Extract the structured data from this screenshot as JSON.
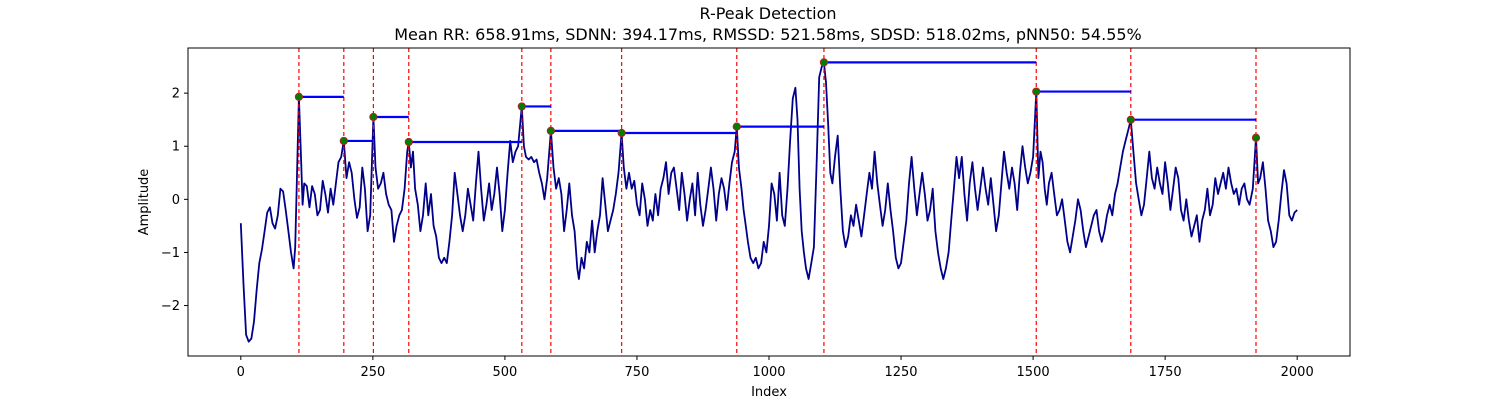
{
  "chart_data": {
    "type": "line",
    "title": "R-Peak Detection",
    "subtitle": "Mean RR: 658.91ms, SDNN: 394.17ms, RMSSD: 521.58ms, SDSD: 518.02ms, pNN50: 54.55%",
    "xlabel": "Index",
    "ylabel": "Amplitude",
    "xlim": [
      -100,
      2100
    ],
    "ylim": [
      -2.95,
      2.85
    ],
    "xticks": [
      0,
      250,
      500,
      750,
      1000,
      1250,
      1500,
      1750,
      2000
    ],
    "yticks": [
      -2,
      -1,
      0,
      1,
      2
    ],
    "grid": false,
    "legend": "none",
    "colors": {
      "signal": "#00008b",
      "peak_line": "#ff0000",
      "rr_segment": "#0000ff",
      "peak_marker_fill": "#008000",
      "peak_marker_edge": "#b22222"
    },
    "peaks": [
      {
        "x": 110,
        "y": 1.93
      },
      {
        "x": 195,
        "y": 1.1
      },
      {
        "x": 251,
        "y": 1.55
      },
      {
        "x": 318,
        "y": 1.08
      },
      {
        "x": 532,
        "y": 1.75
      },
      {
        "x": 587,
        "y": 1.29
      },
      {
        "x": 721,
        "y": 1.25
      },
      {
        "x": 939,
        "y": 1.37
      },
      {
        "x": 1104,
        "y": 2.58
      },
      {
        "x": 1506,
        "y": 2.03
      },
      {
        "x": 1685,
        "y": 1.5
      },
      {
        "x": 1922,
        "y": 1.16
      }
    ],
    "signal_points": [
      [
        0,
        -0.45
      ],
      [
        5,
        -1.6
      ],
      [
        10,
        -2.55
      ],
      [
        15,
        -2.68
      ],
      [
        20,
        -2.62
      ],
      [
        25,
        -2.3
      ],
      [
        30,
        -1.7
      ],
      [
        35,
        -1.2
      ],
      [
        40,
        -0.95
      ],
      [
        45,
        -0.6
      ],
      [
        50,
        -0.25
      ],
      [
        55,
        -0.15
      ],
      [
        60,
        -0.45
      ],
      [
        65,
        -0.55
      ],
      [
        70,
        -0.3
      ],
      [
        75,
        0.2
      ],
      [
        80,
        0.15
      ],
      [
        85,
        -0.2
      ],
      [
        90,
        -0.6
      ],
      [
        95,
        -1.0
      ],
      [
        100,
        -1.3
      ],
      [
        103,
        -0.9
      ],
      [
        106,
        0.3
      ],
      [
        110,
        1.93
      ],
      [
        114,
        0.8
      ],
      [
        117,
        -0.1
      ],
      [
        120,
        0.3
      ],
      [
        125,
        0.25
      ],
      [
        130,
        -0.15
      ],
      [
        135,
        0.25
      ],
      [
        140,
        0.1
      ],
      [
        145,
        -0.3
      ],
      [
        150,
        -0.2
      ],
      [
        155,
        0.35
      ],
      [
        160,
        0.1
      ],
      [
        165,
        -0.25
      ],
      [
        170,
        0.2
      ],
      [
        175,
        -0.1
      ],
      [
        180,
        0.3
      ],
      [
        185,
        0.7
      ],
      [
        190,
        0.8
      ],
      [
        195,
        1.1
      ],
      [
        200,
        0.4
      ],
      [
        205,
        0.7
      ],
      [
        210,
        0.5
      ],
      [
        215,
        0.0
      ],
      [
        220,
        -0.35
      ],
      [
        225,
        -0.15
      ],
      [
        230,
        0.6
      ],
      [
        235,
        0.2
      ],
      [
        240,
        -0.6
      ],
      [
        245,
        -0.3
      ],
      [
        251,
        1.55
      ],
      [
        255,
        0.6
      ],
      [
        260,
        0.2
      ],
      [
        265,
        0.3
      ],
      [
        270,
        0.5
      ],
      [
        275,
        0.1
      ],
      [
        280,
        -0.1
      ],
      [
        285,
        -0.2
      ],
      [
        290,
        -0.8
      ],
      [
        295,
        -0.5
      ],
      [
        300,
        -0.3
      ],
      [
        305,
        -0.2
      ],
      [
        310,
        0.2
      ],
      [
        315,
        0.9
      ],
      [
        318,
        1.08
      ],
      [
        322,
        0.6
      ],
      [
        326,
        0.9
      ],
      [
        330,
        0.2
      ],
      [
        335,
        -0.1
      ],
      [
        340,
        -0.6
      ],
      [
        345,
        -0.3
      ],
      [
        350,
        0.3
      ],
      [
        355,
        -0.3
      ],
      [
        360,
        0.1
      ],
      [
        365,
        -0.5
      ],
      [
        370,
        -0.7
      ],
      [
        375,
        -1.1
      ],
      [
        380,
        -1.2
      ],
      [
        385,
        -1.1
      ],
      [
        390,
        -1.2
      ],
      [
        395,
        -0.8
      ],
      [
        400,
        -0.3
      ],
      [
        405,
        0.5
      ],
      [
        410,
        0.1
      ],
      [
        415,
        -0.3
      ],
      [
        420,
        -0.6
      ],
      [
        425,
        -0.3
      ],
      [
        430,
        0.2
      ],
      [
        435,
        -0.1
      ],
      [
        440,
        -0.4
      ],
      [
        445,
        0.3
      ],
      [
        450,
        0.9
      ],
      [
        455,
        0.2
      ],
      [
        460,
        -0.4
      ],
      [
        465,
        -0.1
      ],
      [
        470,
        0.3
      ],
      [
        475,
        -0.2
      ],
      [
        480,
        0.1
      ],
      [
        485,
        0.6
      ],
      [
        490,
        0.1
      ],
      [
        495,
        -0.6
      ],
      [
        500,
        -0.2
      ],
      [
        505,
        0.5
      ],
      [
        510,
        1.1
      ],
      [
        515,
        0.7
      ],
      [
        520,
        0.9
      ],
      [
        525,
        1.0
      ],
      [
        532,
        1.75
      ],
      [
        536,
        1.0
      ],
      [
        540,
        0.8
      ],
      [
        545,
        0.75
      ],
      [
        550,
        0.8
      ],
      [
        555,
        0.7
      ],
      [
        560,
        0.75
      ],
      [
        565,
        0.5
      ],
      [
        570,
        0.3
      ],
      [
        575,
        0.0
      ],
      [
        580,
        0.4
      ],
      [
        587,
        1.29
      ],
      [
        592,
        0.6
      ],
      [
        597,
        0.2
      ],
      [
        602,
        0.4
      ],
      [
        607,
        0.1
      ],
      [
        612,
        -0.6
      ],
      [
        617,
        -0.2
      ],
      [
        622,
        0.3
      ],
      [
        627,
        -0.3
      ],
      [
        632,
        -0.6
      ],
      [
        637,
        -1.3
      ],
      [
        640,
        -1.5
      ],
      [
        645,
        -1.1
      ],
      [
        650,
        -1.3
      ],
      [
        655,
        -0.8
      ],
      [
        660,
        -1.0
      ],
      [
        665,
        -0.4
      ],
      [
        670,
        -1.0
      ],
      [
        675,
        -0.6
      ],
      [
        680,
        -0.3
      ],
      [
        685,
        0.4
      ],
      [
        690,
        -0.1
      ],
      [
        695,
        -0.6
      ],
      [
        700,
        -0.4
      ],
      [
        705,
        -0.2
      ],
      [
        710,
        0.1
      ],
      [
        715,
        0.5
      ],
      [
        721,
        1.25
      ],
      [
        725,
        0.6
      ],
      [
        730,
        0.2
      ],
      [
        735,
        0.5
      ],
      [
        740,
        0.2
      ],
      [
        745,
        0.35
      ],
      [
        750,
        -0.1
      ],
      [
        755,
        -0.3
      ],
      [
        760,
        0.3
      ],
      [
        765,
        0.0
      ],
      [
        770,
        -0.5
      ],
      [
        775,
        -0.2
      ],
      [
        780,
        -0.4
      ],
      [
        785,
        0.1
      ],
      [
        790,
        -0.3
      ],
      [
        795,
        0.2
      ],
      [
        800,
        0.4
      ],
      [
        805,
        0.7
      ],
      [
        810,
        0.1
      ],
      [
        815,
        0.5
      ],
      [
        820,
        0.6
      ],
      [
        825,
        0.2
      ],
      [
        830,
        -0.2
      ],
      [
        835,
        0.5
      ],
      [
        840,
        0.1
      ],
      [
        845,
        -0.4
      ],
      [
        850,
        0.0
      ],
      [
        855,
        0.3
      ],
      [
        860,
        -0.3
      ],
      [
        865,
        0.5
      ],
      [
        870,
        -0.1
      ],
      [
        875,
        -0.5
      ],
      [
        880,
        -0.2
      ],
      [
        885,
        0.2
      ],
      [
        890,
        0.6
      ],
      [
        895,
        0.2
      ],
      [
        900,
        -0.4
      ],
      [
        905,
        0.1
      ],
      [
        910,
        0.4
      ],
      [
        915,
        0.2
      ],
      [
        920,
        -0.2
      ],
      [
        925,
        0.3
      ],
      [
        930,
        0.7
      ],
      [
        935,
        0.9
      ],
      [
        939,
        1.37
      ],
      [
        943,
        0.6
      ],
      [
        948,
        0.2
      ],
      [
        952,
        -0.2
      ],
      [
        956,
        -0.5
      ],
      [
        960,
        -0.8
      ],
      [
        965,
        -1.1
      ],
      [
        970,
        -1.2
      ],
      [
        975,
        -1.1
      ],
      [
        980,
        -1.3
      ],
      [
        985,
        -1.2
      ],
      [
        990,
        -0.8
      ],
      [
        995,
        -1.0
      ],
      [
        1000,
        -0.5
      ],
      [
        1005,
        0.3
      ],
      [
        1010,
        0.1
      ],
      [
        1015,
        -0.4
      ],
      [
        1020,
        0.5
      ],
      [
        1025,
        -0.3
      ],
      [
        1030,
        -0.5
      ],
      [
        1035,
        0.2
      ],
      [
        1040,
        1.1
      ],
      [
        1045,
        1.9
      ],
      [
        1050,
        2.1
      ],
      [
        1054,
        1.5
      ],
      [
        1058,
        0.2
      ],
      [
        1062,
        -0.6
      ],
      [
        1066,
        -1.0
      ],
      [
        1070,
        -1.3
      ],
      [
        1075,
        -1.5
      ],
      [
        1080,
        -1.2
      ],
      [
        1085,
        -0.9
      ],
      [
        1090,
        0.6
      ],
      [
        1095,
        2.3
      ],
      [
        1100,
        2.5
      ],
      [
        1104,
        2.58
      ],
      [
        1108,
        2.2
      ],
      [
        1112,
        1.4
      ],
      [
        1116,
        0.5
      ],
      [
        1120,
        0.3
      ],
      [
        1125,
        0.8
      ],
      [
        1130,
        1.2
      ],
      [
        1135,
        0.2
      ],
      [
        1140,
        -0.6
      ],
      [
        1145,
        -0.9
      ],
      [
        1150,
        -0.7
      ],
      [
        1155,
        -0.3
      ],
      [
        1160,
        -0.5
      ],
      [
        1165,
        -0.1
      ],
      [
        1170,
        -0.4
      ],
      [
        1175,
        -0.7
      ],
      [
        1180,
        -0.3
      ],
      [
        1185,
        0.1
      ],
      [
        1190,
        0.5
      ],
      [
        1195,
        0.2
      ],
      [
        1200,
        0.9
      ],
      [
        1205,
        0.3
      ],
      [
        1210,
        -0.1
      ],
      [
        1215,
        -0.5
      ],
      [
        1220,
        -0.2
      ],
      [
        1225,
        0.3
      ],
      [
        1230,
        -0.2
      ],
      [
        1235,
        -0.6
      ],
      [
        1240,
        -1.1
      ],
      [
        1245,
        -1.3
      ],
      [
        1250,
        -1.2
      ],
      [
        1255,
        -0.8
      ],
      [
        1260,
        -0.4
      ],
      [
        1265,
        0.3
      ],
      [
        1270,
        0.8
      ],
      [
        1275,
        0.2
      ],
      [
        1280,
        -0.3
      ],
      [
        1285,
        0.1
      ],
      [
        1290,
        0.5
      ],
      [
        1295,
        0.1
      ],
      [
        1300,
        -0.4
      ],
      [
        1305,
        -0.2
      ],
      [
        1310,
        0.2
      ],
      [
        1315,
        -0.6
      ],
      [
        1320,
        -1.0
      ],
      [
        1325,
        -1.3
      ],
      [
        1330,
        -1.5
      ],
      [
        1335,
        -1.3
      ],
      [
        1340,
        -1.0
      ],
      [
        1345,
        -0.4
      ],
      [
        1350,
        0.2
      ],
      [
        1355,
        0.8
      ],
      [
        1360,
        0.4
      ],
      [
        1365,
        0.8
      ],
      [
        1370,
        0.1
      ],
      [
        1375,
        -0.4
      ],
      [
        1380,
        0.3
      ],
      [
        1385,
        0.7
      ],
      [
        1390,
        0.2
      ],
      [
        1395,
        -0.2
      ],
      [
        1400,
        0.2
      ],
      [
        1405,
        0.6
      ],
      [
        1410,
        0.2
      ],
      [
        1415,
        -0.1
      ],
      [
        1420,
        0.4
      ],
      [
        1425,
        -0.1
      ],
      [
        1430,
        -0.6
      ],
      [
        1435,
        -0.3
      ],
      [
        1440,
        0.3
      ],
      [
        1445,
        0.9
      ],
      [
        1450,
        0.5
      ],
      [
        1455,
        0.2
      ],
      [
        1460,
        0.6
      ],
      [
        1465,
        0.3
      ],
      [
        1470,
        -0.2
      ],
      [
        1475,
        0.5
      ],
      [
        1480,
        1.0
      ],
      [
        1485,
        0.6
      ],
      [
        1490,
        0.3
      ],
      [
        1495,
        0.5
      ],
      [
        1500,
        0.8
      ],
      [
        1506,
        2.03
      ],
      [
        1510,
        0.4
      ],
      [
        1514,
        0.9
      ],
      [
        1518,
        0.7
      ],
      [
        1522,
        0.2
      ],
      [
        1526,
        -0.1
      ],
      [
        1530,
        0.3
      ],
      [
        1535,
        0.5
      ],
      [
        1540,
        0.1
      ],
      [
        1545,
        -0.3
      ],
      [
        1550,
        -0.2
      ],
      [
        1555,
        0.0
      ],
      [
        1560,
        -0.4
      ],
      [
        1565,
        -0.8
      ],
      [
        1570,
        -1.0
      ],
      [
        1575,
        -0.7
      ],
      [
        1580,
        -0.4
      ],
      [
        1585,
        0.0
      ],
      [
        1590,
        -0.2
      ],
      [
        1595,
        -0.6
      ],
      [
        1600,
        -0.9
      ],
      [
        1605,
        -0.7
      ],
      [
        1610,
        -0.5
      ],
      [
        1615,
        -0.3
      ],
      [
        1620,
        -0.2
      ],
      [
        1625,
        -0.6
      ],
      [
        1630,
        -0.8
      ],
      [
        1635,
        -0.6
      ],
      [
        1640,
        -0.3
      ],
      [
        1645,
        -0.1
      ],
      [
        1650,
        -0.3
      ],
      [
        1655,
        0.1
      ],
      [
        1660,
        0.3
      ],
      [
        1665,
        0.6
      ],
      [
        1670,
        0.9
      ],
      [
        1675,
        1.1
      ],
      [
        1680,
        1.3
      ],
      [
        1685,
        1.5
      ],
      [
        1690,
        0.9
      ],
      [
        1695,
        0.3
      ],
      [
        1700,
        0.0
      ],
      [
        1705,
        -0.3
      ],
      [
        1710,
        -0.1
      ],
      [
        1715,
        0.4
      ],
      [
        1720,
        0.9
      ],
      [
        1725,
        0.4
      ],
      [
        1730,
        0.2
      ],
      [
        1735,
        0.6
      ],
      [
        1740,
        0.3
      ],
      [
        1745,
        0.1
      ],
      [
        1750,
        0.7
      ],
      [
        1755,
        0.3
      ],
      [
        1760,
        -0.2
      ],
      [
        1765,
        0.2
      ],
      [
        1770,
        0.6
      ],
      [
        1775,
        0.4
      ],
      [
        1780,
        -0.2
      ],
      [
        1785,
        -0.4
      ],
      [
        1790,
        0.0
      ],
      [
        1795,
        -0.4
      ],
      [
        1800,
        -0.7
      ],
      [
        1805,
        -0.5
      ],
      [
        1810,
        -0.3
      ],
      [
        1815,
        -0.8
      ],
      [
        1820,
        -0.4
      ],
      [
        1825,
        -0.2
      ],
      [
        1830,
        0.2
      ],
      [
        1835,
        -0.3
      ],
      [
        1840,
        -0.1
      ],
      [
        1845,
        0.4
      ],
      [
        1850,
        0.1
      ],
      [
        1855,
        0.3
      ],
      [
        1860,
        0.5
      ],
      [
        1865,
        0.2
      ],
      [
        1870,
        0.6
      ],
      [
        1875,
        0.3
      ],
      [
        1880,
        0.1
      ],
      [
        1885,
        0.2
      ],
      [
        1890,
        -0.1
      ],
      [
        1895,
        0.2
      ],
      [
        1900,
        0.3
      ],
      [
        1905,
        0.0
      ],
      [
        1910,
        -0.1
      ],
      [
        1916,
        0.2
      ],
      [
        1922,
        1.16
      ],
      [
        1926,
        0.3
      ],
      [
        1930,
        0.4
      ],
      [
        1935,
        0.7
      ],
      [
        1940,
        0.2
      ],
      [
        1945,
        -0.4
      ],
      [
        1950,
        -0.6
      ],
      [
        1955,
        -0.9
      ],
      [
        1960,
        -0.8
      ],
      [
        1965,
        -0.4
      ],
      [
        1970,
        0.1
      ],
      [
        1975,
        0.55
      ],
      [
        1980,
        0.3
      ],
      [
        1985,
        -0.3
      ],
      [
        1990,
        -0.4
      ],
      [
        1995,
        -0.25
      ],
      [
        2000,
        -0.2
      ]
    ]
  }
}
